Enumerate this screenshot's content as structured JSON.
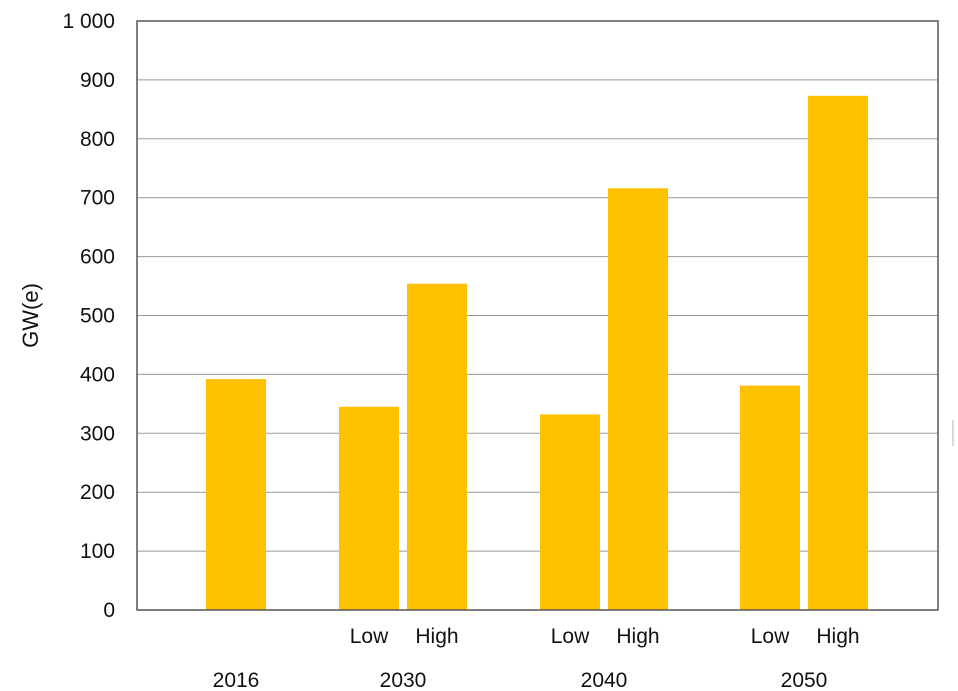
{
  "chart_data": {
    "type": "bar",
    "ylabel": "GW(e)",
    "ylim": [
      0,
      1000
    ],
    "yticks": [
      0,
      100,
      200,
      300,
      400,
      500,
      600,
      700,
      800,
      900,
      1000
    ],
    "ytick_labels": [
      "0",
      "100",
      "200",
      "300",
      "400",
      "500",
      "600",
      "700",
      "800",
      "900",
      "1 000"
    ],
    "grid": true,
    "bar_color": "#FFC000",
    "groups": [
      {
        "label": "2016",
        "bars": [
          {
            "label": "",
            "value": 392
          }
        ]
      },
      {
        "label": "2030",
        "bars": [
          {
            "label": "Low",
            "value": 345
          },
          {
            "label": "High",
            "value": 554
          }
        ]
      },
      {
        "label": "2040",
        "bars": [
          {
            "label": "Low",
            "value": 332
          },
          {
            "label": "High",
            "value": 716
          }
        ]
      },
      {
        "label": "2050",
        "bars": [
          {
            "label": "Low",
            "value": 381
          },
          {
            "label": "High",
            "value": 873
          }
        ]
      }
    ]
  }
}
